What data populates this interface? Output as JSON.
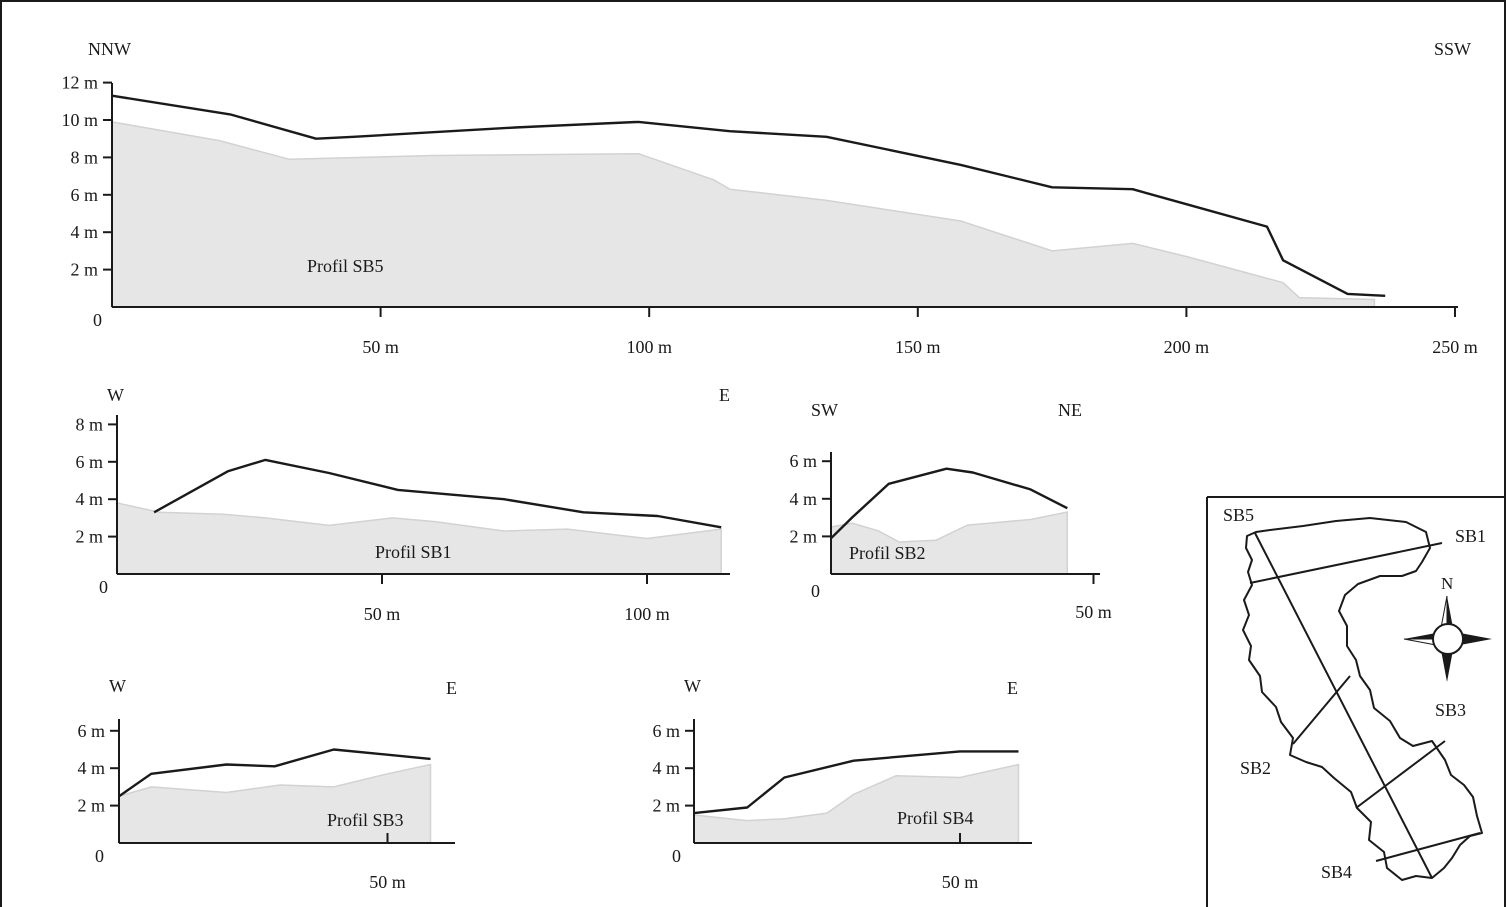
{
  "chart_data": [
    {
      "type": "area",
      "id": "sb5",
      "profile_label": "Profil SB5",
      "dir_left": "NNW",
      "dir_right": "SSW",
      "origin_label": "0",
      "xlim": [
        0,
        250
      ],
      "ylim": [
        0,
        12
      ],
      "x_ticks": [
        50,
        100,
        150,
        200,
        250
      ],
      "x_tick_labels": [
        "50 m",
        "100 m",
        "150 m",
        "200 m",
        "250 m"
      ],
      "y_ticks": [
        2,
        4,
        6,
        8,
        10,
        12
      ],
      "y_tick_labels": [
        "2 m",
        "4 m",
        "6 m",
        "8 m",
        "10 m",
        "12 m"
      ],
      "series": [
        {
          "role": "surface",
          "x": [
            0,
            22,
            38,
            45,
            75,
            98,
            115,
            133,
            158,
            175,
            190,
            200,
            215,
            218,
            230,
            237
          ],
          "y": [
            11.3,
            10.3,
            9.0,
            9.1,
            9.6,
            9.9,
            9.4,
            9.1,
            7.6,
            6.4,
            6.3,
            5.5,
            4.3,
            2.5,
            0.7,
            0.6
          ]
        },
        {
          "role": "sediment",
          "x": [
            0,
            20,
            33,
            60,
            98,
            112,
            115,
            133,
            158,
            175,
            190,
            200,
            218,
            221,
            235
          ],
          "y": [
            9.9,
            8.9,
            7.9,
            8.1,
            8.2,
            6.8,
            6.3,
            5.7,
            4.6,
            3.0,
            3.4,
            2.7,
            1.3,
            0.5,
            0.4
          ]
        }
      ]
    },
    {
      "type": "area",
      "id": "sb1",
      "profile_label": "Profil SB1",
      "dir_left": "W",
      "dir_right": "E",
      "origin_label": "0",
      "xlim": [
        0,
        114
      ],
      "ylim": [
        0,
        8
      ],
      "x_ticks": [
        50,
        100
      ],
      "x_tick_labels": [
        "50 m",
        "100 m"
      ],
      "y_ticks": [
        2,
        4,
        6,
        8
      ],
      "y_tick_labels": [
        "2 m",
        "4 m",
        "6 m",
        "8 m"
      ],
      "series": [
        {
          "role": "surface",
          "x": [
            7,
            21,
            28,
            40,
            53,
            73,
            88,
            102,
            114
          ],
          "y": [
            3.3,
            5.5,
            6.1,
            5.4,
            4.5,
            4.0,
            3.3,
            3.1,
            2.5
          ]
        },
        {
          "role": "sediment",
          "x": [
            0,
            8,
            20,
            28,
            40,
            52,
            60,
            73,
            85,
            100,
            114
          ],
          "y": [
            3.8,
            3.3,
            3.2,
            3.0,
            2.6,
            3.0,
            2.8,
            2.3,
            2.4,
            1.9,
            2.4
          ]
        }
      ]
    },
    {
      "type": "area",
      "id": "sb2",
      "profile_label": "Profil SB2",
      "dir_left": "SW",
      "dir_right": "NE",
      "origin_label": "0",
      "xlim": [
        0,
        51
      ],
      "ylim": [
        0,
        7
      ],
      "x_ticks": [
        50
      ],
      "x_tick_labels": [
        "50 m"
      ],
      "y_ticks": [
        2,
        4,
        6
      ],
      "y_tick_labels": [
        "2 m",
        "4 m",
        "6 m"
      ],
      "series": [
        {
          "role": "surface",
          "x": [
            0,
            4,
            11,
            22,
            27,
            38,
            45
          ],
          "y": [
            1.9,
            3.0,
            4.8,
            5.6,
            5.4,
            4.5,
            3.5
          ]
        },
        {
          "role": "sediment",
          "x": [
            0,
            4,
            9,
            13,
            20,
            26,
            30,
            38,
            45
          ],
          "y": [
            2.5,
            2.7,
            2.3,
            1.7,
            1.8,
            2.6,
            2.7,
            2.9,
            3.3
          ]
        }
      ]
    },
    {
      "type": "area",
      "id": "sb3",
      "profile_label": "Profil SB3",
      "dir_left": "W",
      "dir_right": "E",
      "origin_label": "0",
      "xlim": [
        0,
        58
      ],
      "ylim": [
        0,
        7
      ],
      "x_ticks": [
        50
      ],
      "x_tick_labels": [
        "50 m"
      ],
      "y_ticks": [
        2,
        4,
        6
      ],
      "y_tick_labels": [
        "2 m",
        "4 m",
        "6 m"
      ],
      "series": [
        {
          "role": "surface",
          "x": [
            0,
            6,
            20,
            29,
            40,
            58
          ],
          "y": [
            2.5,
            3.7,
            4.2,
            4.1,
            5.0,
            4.5
          ]
        },
        {
          "role": "sediment",
          "x": [
            0,
            6,
            20,
            30,
            40,
            50,
            58
          ],
          "y": [
            2.5,
            3.0,
            2.7,
            3.1,
            3.0,
            3.7,
            4.2
          ]
        }
      ]
    },
    {
      "type": "area",
      "id": "sb4",
      "profile_label": "Profil SB4",
      "dir_left": "W",
      "dir_right": "E",
      "origin_label": "0",
      "xlim": [
        0,
        61
      ],
      "ylim": [
        0,
        7
      ],
      "x_ticks": [
        50
      ],
      "x_tick_labels": [
        "50 m"
      ],
      "y_ticks": [
        2,
        4,
        6
      ],
      "y_tick_labels": [
        "2 m",
        "4 m",
        "6 m"
      ],
      "series": [
        {
          "role": "surface",
          "x": [
            0,
            10,
            17,
            30,
            50,
            61
          ],
          "y": [
            1.6,
            1.9,
            3.5,
            4.4,
            4.9,
            4.9
          ]
        },
        {
          "role": "sediment",
          "x": [
            0,
            10,
            17,
            25,
            30,
            38,
            50,
            61
          ],
          "y": [
            1.5,
            1.2,
            1.3,
            1.6,
            2.6,
            3.6,
            3.5,
            4.2
          ]
        }
      ]
    }
  ],
  "map": {
    "labels": {
      "sb5": "SB5",
      "sb1": "SB1",
      "sb2": "SB2",
      "sb3": "SB3",
      "sb4": "SB4",
      "north": "N"
    }
  }
}
